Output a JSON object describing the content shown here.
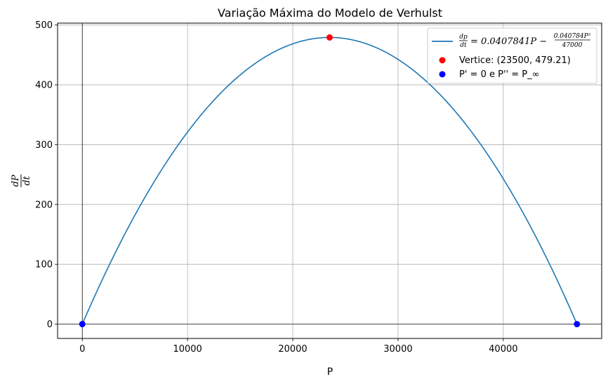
{
  "chart_data": {
    "type": "line",
    "title": "Variação Máxima do Modelo de Verhulst",
    "xlabel": "P",
    "ylabel_num": "dP",
    "ylabel_den": "dt",
    "xlim": [
      -2350,
      49350
    ],
    "ylim": [
      -23.96,
      503.17
    ],
    "xticks": [
      0,
      10000,
      20000,
      30000,
      40000
    ],
    "yticks": [
      0,
      100,
      200,
      300,
      400,
      500
    ],
    "grid": true,
    "legend_position": "top-right",
    "curve": {
      "name_parts": {
        "lhs_num": "dp",
        "lhs_den": "dt",
        "rhs": "= 0.0407841P −",
        "frac_num": "0.040784P²",
        "frac_den": "47000"
      },
      "a": 0.0407841,
      "b": 0.040784,
      "c": 47000,
      "x_range": [
        0,
        47000
      ],
      "color": "#1f77b4"
    },
    "points": [
      {
        "name": "Vertice: (23500, 479.21)",
        "color": "#ff0000",
        "data": [
          [
            23500,
            479.21
          ]
        ]
      },
      {
        "name": "P' = 0 e P'' = P_∞",
        "color": "#0000ff",
        "data": [
          [
            0,
            0
          ],
          [
            47000,
            0
          ]
        ]
      }
    ]
  }
}
